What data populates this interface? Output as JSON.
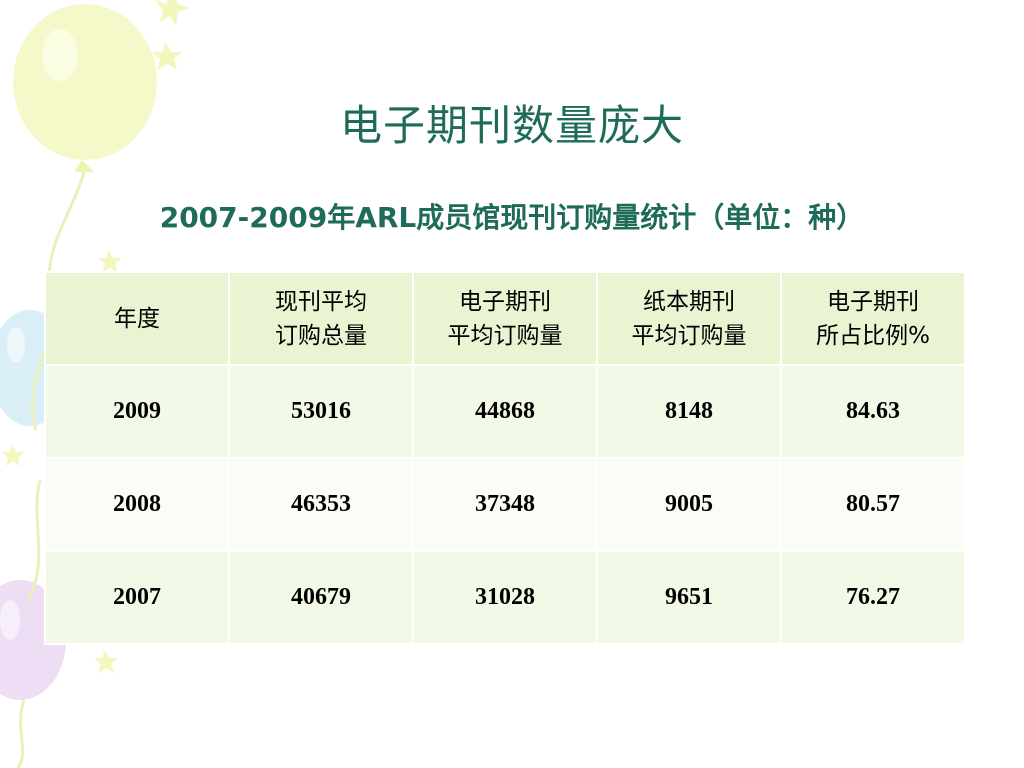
{
  "slide": {
    "title": "电子期刊数量庞大",
    "subtitle": "2007-2009年ARL成员馆现刊订购量统计（单位：种）"
  },
  "table": {
    "headers": [
      "年度",
      "现刊平均\n订购总量",
      "电子期刊\n平均订购量",
      "纸本期刊\n平均订购量",
      "电子期刊\n所占比例%"
    ],
    "rows": [
      [
        "2009",
        "53016",
        "44868",
        "8148",
        "84.63"
      ],
      [
        "2008",
        "46353",
        "37348",
        "9005",
        "80.57"
      ],
      [
        "2007",
        "40679",
        "31028",
        "9651",
        "76.27"
      ]
    ]
  },
  "chart_data": {
    "type": "table",
    "title": "2007-2009年ARL成员馆现刊订购量统计（单位：种）",
    "columns": [
      "年度",
      "现刊平均订购总量",
      "电子期刊平均订购量",
      "纸本期刊平均订购量",
      "电子期刊所占比例%"
    ],
    "rows": [
      [
        2009,
        53016,
        44868,
        8148,
        84.63
      ],
      [
        2008,
        46353,
        37348,
        9005,
        80.57
      ],
      [
        2007,
        40679,
        31028,
        9651,
        76.27
      ]
    ]
  },
  "colors": {
    "title": "#1e6b5a",
    "header_fill": "#e9f5d2",
    "row_fill_odd": "#f2f9e6",
    "row_fill_even": "#fafdf5"
  },
  "decorations": [
    "balloon-yellow",
    "balloon-blue",
    "balloon-purple",
    "balloon-string",
    "sparkle-star"
  ]
}
